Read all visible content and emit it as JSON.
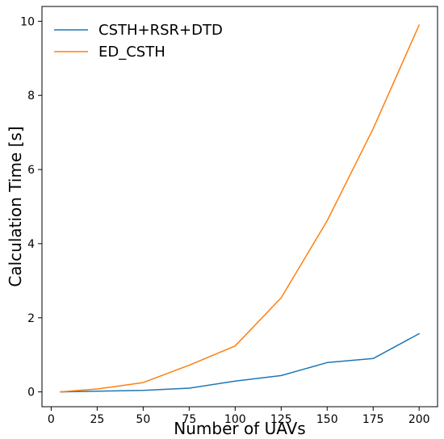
{
  "chart_data": {
    "type": "line",
    "title": "",
    "xlabel": "Number of UAVs",
    "ylabel": "Calculation Time [s]",
    "xlim": [
      -5,
      210
    ],
    "ylim": [
      -0.4,
      10.4
    ],
    "xticks": [
      0,
      25,
      50,
      75,
      100,
      125,
      150,
      175,
      200
    ],
    "yticks": [
      0,
      2,
      4,
      6,
      8,
      10
    ],
    "grid": false,
    "legend_position": "top-left",
    "series": [
      {
        "name": "CSTH+RSR+DTD",
        "color": "#1f77b4",
        "x": [
          5,
          25,
          50,
          75,
          100,
          125,
          150,
          175,
          200
        ],
        "y": [
          0.0,
          0.02,
          0.04,
          0.1,
          0.29,
          0.44,
          0.79,
          0.9,
          1.57
        ]
      },
      {
        "name": "ED_CSTH",
        "color": "#ff7f0e",
        "x": [
          5,
          25,
          50,
          75,
          100,
          125,
          150,
          175,
          200
        ],
        "y": [
          0.0,
          0.08,
          0.25,
          0.72,
          1.24,
          2.54,
          4.62,
          7.1,
          9.9
        ]
      }
    ]
  }
}
